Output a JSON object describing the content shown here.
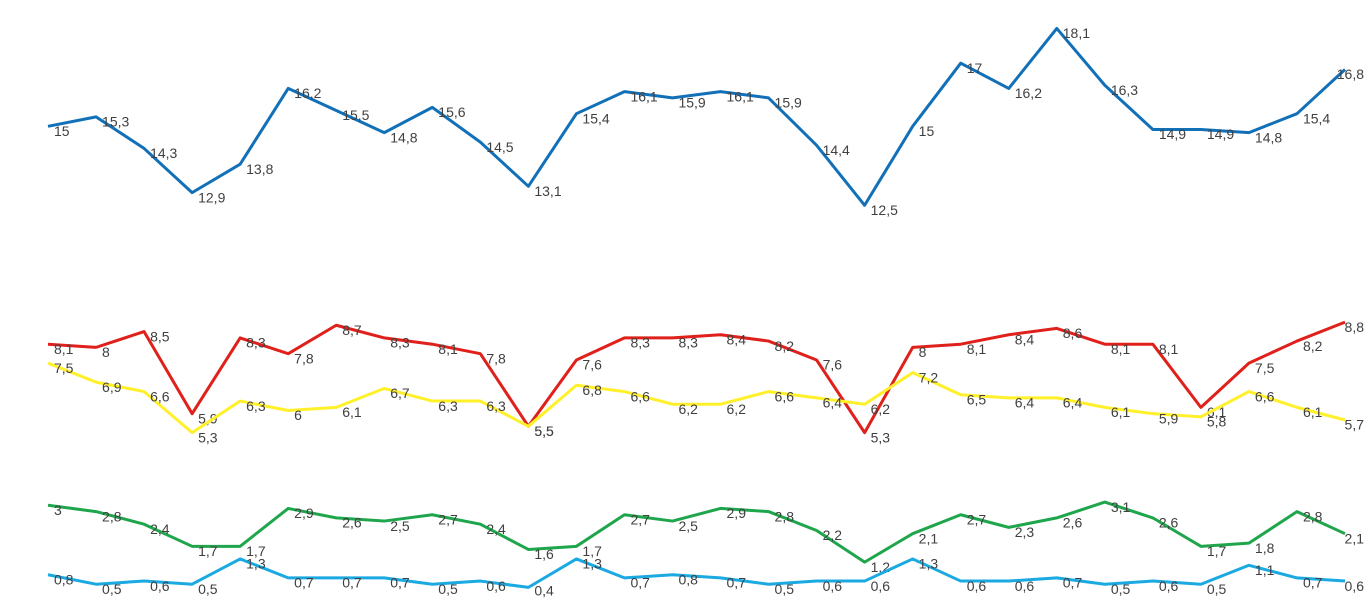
{
  "chart_data": {
    "type": "line",
    "ylim": [
      0,
      19
    ],
    "series": [
      {
        "color": "#1170b8",
        "values": [
          15,
          15.3,
          14.3,
          12.9,
          13.8,
          16.2,
          15.5,
          14.8,
          15.6,
          14.5,
          13.1,
          15.4,
          16.1,
          15.9,
          16.1,
          15.9,
          14.4,
          12.5,
          15,
          17,
          16.2,
          18.1,
          16.3,
          14.9,
          14.9,
          14.8,
          15.4,
          16.8
        ],
        "value_labels": [
          "15",
          "15,3",
          "14,3",
          "12,9",
          "13,8",
          "16,2",
          "15,5",
          "14,8",
          "15,6",
          "14,5",
          "13,1",
          "15,4",
          "16,1",
          "15,9",
          "16,1",
          "15,9",
          "14,4",
          "12,5",
          "15",
          "17",
          "16,2",
          "18,1",
          "16,3",
          "14,9",
          "14,9",
          "14,8",
          "15,4",
          "16,8"
        ]
      },
      {
        "color": "#e0201b",
        "values": [
          8.1,
          8,
          8.5,
          5.9,
          8.3,
          7.8,
          8.7,
          8.3,
          8.1,
          7.8,
          5.5,
          7.6,
          8.3,
          8.3,
          8.4,
          8.2,
          7.6,
          5.3,
          8,
          8.1,
          8.4,
          8.6,
          8.1,
          8.1,
          6.1,
          7.5,
          8.2,
          8.8
        ],
        "value_labels": [
          "8,1",
          "8",
          "8,5",
          "5,9",
          "8,3",
          "7,8",
          "8,7",
          "8,3",
          "8,1",
          "7,8",
          "5,5",
          "7,6",
          "8,3",
          "8,3",
          "8,4",
          "8,2",
          "7,6",
          "5,3",
          "8",
          "8,1",
          "8,4",
          "8,6",
          "8,1",
          "8,1",
          "6,1",
          "7,5",
          "8,2",
          "8,8"
        ]
      },
      {
        "color": "#fff02a",
        "values": [
          7.5,
          6.9,
          6.6,
          5.3,
          6.3,
          6,
          6.1,
          6.7,
          6.3,
          6.3,
          5.5,
          6.8,
          6.6,
          6.2,
          6.2,
          6.6,
          6.4,
          6.2,
          7.2,
          6.5,
          6.4,
          6.4,
          6.1,
          5.9,
          5.8,
          6.6,
          6.1,
          5.7
        ],
        "value_labels": [
          "7,5",
          "6,9",
          "6,6",
          "5,3",
          "6,3",
          "6",
          "6,1",
          "6,7",
          "6,3",
          "6,3",
          "5,5",
          "6,8",
          "6,6",
          "6,2",
          "6,2",
          "6,6",
          "6,4",
          "6,2",
          "7,2",
          "6,5",
          "6,4",
          "6,4",
          "6,1",
          "5,9",
          "5,8",
          "6,6",
          "6,1",
          "5,7"
        ]
      },
      {
        "color": "#1fa64c",
        "values": [
          3,
          2.8,
          2.4,
          1.7,
          1.7,
          2.9,
          2.6,
          2.5,
          2.7,
          2.4,
          1.6,
          1.7,
          2.7,
          2.5,
          2.9,
          2.8,
          2.2,
          1.2,
          2.1,
          2.7,
          2.3,
          2.6,
          3.1,
          2.6,
          1.7,
          1.8,
          2.8,
          2.1
        ],
        "value_labels": [
          "3",
          "2,8",
          "2,4",
          "1,7",
          "1,7",
          "2,9",
          "2,6",
          "2,5",
          "2,7",
          "2,4",
          "1,6",
          "1,7",
          "2,7",
          "2,5",
          "2,9",
          "2,8",
          "2,2",
          "1,2",
          "2,1",
          "2,7",
          "2,3",
          "2,6",
          "3,1",
          "2,6",
          "1,7",
          "1,8",
          "2,8",
          "2,1"
        ]
      },
      {
        "color": "#1ba9e1",
        "values": [
          0.8,
          0.5,
          0.6,
          0.5,
          1.3,
          0.7,
          0.7,
          0.7,
          0.5,
          0.6,
          0.4,
          1.3,
          0.7,
          0.8,
          0.7,
          0.5,
          0.6,
          0.6,
          1.3,
          0.6,
          0.6,
          0.7,
          0.5,
          0.6,
          0.5,
          1.1,
          0.7,
          0.6
        ],
        "value_labels": [
          "0,8",
          "0,5",
          "0,6",
          "0,5",
          "1,3",
          "0,7",
          "0,7",
          "0,7",
          "0,5",
          "0,6",
          "0,4",
          "1,3",
          "0,7",
          "0,8",
          "0,7",
          "0,5",
          "0,6",
          "0,6",
          "1,3",
          "0,6",
          "0,6",
          "0,7",
          "0,5",
          "0,6",
          "0,5",
          "1,1",
          "0,7",
          "0,6"
        ]
      }
    ]
  }
}
